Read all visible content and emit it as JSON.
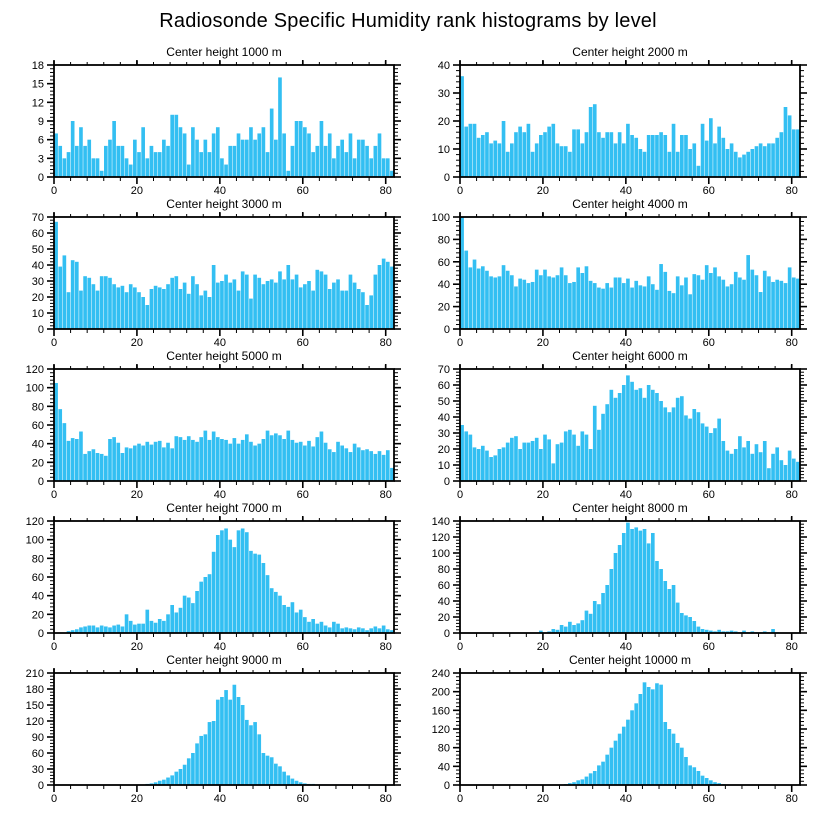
{
  "page": {
    "title": "Radiosonde Specific Humidity rank histograms by level"
  },
  "colors": {
    "bar": "#33bff2",
    "axis": "#000000",
    "background": "#ffffff"
  },
  "chart_data": [
    {
      "type": "bar",
      "title": "Center height 1000 m",
      "xlabel": "",
      "ylabel": "",
      "xlim": [
        0,
        82
      ],
      "ylim": [
        0,
        18
      ],
      "xticks": [
        0,
        20,
        40,
        60,
        80
      ],
      "yticks": [
        0,
        3,
        6,
        9,
        12,
        15,
        18
      ],
      "grid": false,
      "legend": "none",
      "values": [
        7,
        5,
        3,
        4,
        9,
        5,
        8,
        5,
        6,
        3,
        3,
        1,
        5,
        6,
        9,
        5,
        5,
        3,
        2,
        6,
        4,
        8,
        3,
        5,
        4,
        4,
        6,
        5,
        10,
        10,
        8,
        7,
        2,
        8,
        6,
        4,
        6,
        4,
        7,
        8,
        3,
        2,
        5,
        5,
        7,
        6,
        6,
        8,
        6,
        7,
        8,
        4,
        11,
        6,
        16,
        7,
        1,
        5,
        9,
        9,
        8,
        7,
        4,
        5,
        9,
        5,
        7,
        3,
        5,
        6,
        4,
        7,
        3,
        6,
        6,
        5,
        3,
        5,
        7,
        3,
        3,
        1
      ]
    },
    {
      "type": "bar",
      "title": "Center height 2000 m",
      "xlabel": "",
      "ylabel": "",
      "xlim": [
        0,
        82
      ],
      "ylim": [
        0,
        40
      ],
      "xticks": [
        0,
        20,
        40,
        60,
        80
      ],
      "yticks": [
        0,
        10,
        20,
        30,
        40
      ],
      "grid": false,
      "legend": "none",
      "values": [
        36,
        18,
        19,
        19,
        14,
        15,
        16,
        12,
        13,
        12,
        20,
        9,
        12,
        16,
        18,
        16,
        19,
        9,
        12,
        15,
        16,
        18,
        19,
        12,
        11,
        11,
        9,
        17,
        17,
        12,
        16,
        25,
        26,
        16,
        14,
        16,
        16,
        12,
        16,
        12,
        19,
        15,
        14,
        10,
        9,
        15,
        15,
        15,
        16,
        15,
        9,
        19,
        9,
        15,
        15,
        10,
        12,
        4,
        19,
        13,
        21,
        12,
        18,
        14,
        10,
        12,
        9,
        7,
        8,
        9,
        10,
        11,
        12,
        11,
        12,
        12,
        14,
        16,
        25,
        22,
        17,
        17
      ]
    },
    {
      "type": "bar",
      "title": "Center height 3000 m",
      "xlabel": "",
      "ylabel": "",
      "xlim": [
        0,
        82
      ],
      "ylim": [
        0,
        70
      ],
      "xticks": [
        0,
        20,
        40,
        60,
        80
      ],
      "yticks": [
        0,
        10,
        20,
        30,
        40,
        50,
        60,
        70
      ],
      "grid": false,
      "legend": "none",
      "values": [
        67,
        39,
        46,
        23,
        43,
        42,
        24,
        33,
        32,
        28,
        24,
        33,
        33,
        32,
        28,
        26,
        27,
        23,
        28,
        26,
        23,
        20,
        15,
        25,
        27,
        26,
        25,
        28,
        32,
        33,
        25,
        29,
        22,
        33,
        28,
        21,
        24,
        20,
        40,
        29,
        30,
        34,
        29,
        31,
        24,
        36,
        34,
        19,
        34,
        32,
        28,
        30,
        31,
        29,
        36,
        31,
        40,
        31,
        34,
        26,
        28,
        30,
        24,
        37,
        36,
        34,
        25,
        29,
        31,
        24,
        24,
        34,
        29,
        25,
        23,
        15,
        21,
        34,
        40,
        44,
        42,
        39
      ]
    },
    {
      "type": "bar",
      "title": "Center height 4000 m",
      "xlabel": "",
      "ylabel": "",
      "xlim": [
        0,
        82
      ],
      "ylim": [
        0,
        100
      ],
      "xticks": [
        0,
        20,
        40,
        60,
        80
      ],
      "yticks": [
        0,
        20,
        40,
        60,
        80,
        100
      ],
      "grid": false,
      "legend": "none",
      "values": [
        100,
        70,
        55,
        62,
        54,
        56,
        52,
        47,
        46,
        47,
        57,
        52,
        48,
        38,
        45,
        44,
        41,
        42,
        53,
        48,
        53,
        47,
        46,
        48,
        55,
        48,
        41,
        42,
        55,
        50,
        56,
        43,
        41,
        37,
        36,
        41,
        37,
        46,
        46,
        41,
        45,
        37,
        43,
        39,
        38,
        47,
        40,
        35,
        58,
        51,
        34,
        32,
        47,
        39,
        46,
        31,
        49,
        48,
        44,
        57,
        50,
        55,
        47,
        44,
        38,
        40,
        51,
        46,
        44,
        66,
        53,
        48,
        33,
        52,
        47,
        42,
        44,
        43,
        41,
        55,
        46,
        45
      ]
    },
    {
      "type": "bar",
      "title": "Center height 5000 m",
      "xlabel": "",
      "ylabel": "",
      "xlim": [
        0,
        82
      ],
      "ylim": [
        0,
        120
      ],
      "xticks": [
        0,
        20,
        40,
        60,
        80
      ],
      "yticks": [
        0,
        20,
        40,
        60,
        80,
        100,
        120
      ],
      "grid": false,
      "legend": "none",
      "values": [
        105,
        77,
        62,
        43,
        46,
        45,
        53,
        29,
        32,
        34,
        30,
        29,
        27,
        45,
        47,
        41,
        30,
        36,
        35,
        38,
        40,
        38,
        42,
        39,
        42,
        43,
        36,
        41,
        35,
        48,
        47,
        44,
        48,
        44,
        42,
        47,
        54,
        44,
        53,
        47,
        45,
        44,
        40,
        46,
        40,
        44,
        50,
        42,
        38,
        40,
        45,
        54,
        49,
        51,
        49,
        45,
        54,
        44,
        41,
        42,
        38,
        43,
        37,
        47,
        53,
        41,
        34,
        31,
        42,
        38,
        35,
        31,
        40,
        36,
        33,
        34,
        32,
        29,
        32,
        28,
        33,
        14
      ]
    },
    {
      "type": "bar",
      "title": "Center height 6000 m",
      "xlabel": "",
      "ylabel": "",
      "xlim": [
        0,
        82
      ],
      "ylim": [
        0,
        70
      ],
      "xticks": [
        0,
        20,
        40,
        60,
        80
      ],
      "yticks": [
        0,
        10,
        20,
        30,
        40,
        50,
        60,
        70
      ],
      "grid": false,
      "legend": "none",
      "values": [
        35,
        31,
        29,
        21,
        20,
        22,
        19,
        15,
        16,
        20,
        21,
        24,
        27,
        28,
        20,
        24,
        24,
        25,
        27,
        20,
        29,
        26,
        11,
        23,
        24,
        31,
        32,
        29,
        22,
        31,
        29,
        20,
        47,
        32,
        42,
        48,
        57,
        52,
        55,
        60,
        66,
        62,
        57,
        58,
        52,
        60,
        57,
        55,
        50,
        46,
        43,
        46,
        52,
        53,
        41,
        39,
        45,
        43,
        36,
        34,
        30,
        33,
        39,
        25,
        19,
        17,
        20,
        28,
        21,
        25,
        17,
        23,
        18,
        25,
        8,
        17,
        21,
        13,
        10,
        19,
        14,
        12
      ]
    },
    {
      "type": "bar",
      "title": "Center height 7000 m",
      "xlabel": "",
      "ylabel": "",
      "xlim": [
        0,
        82
      ],
      "ylim": [
        0,
        120
      ],
      "xticks": [
        0,
        20,
        40,
        60,
        80
      ],
      "yticks": [
        0,
        20,
        40,
        60,
        80,
        100,
        120
      ],
      "grid": false,
      "legend": "none",
      "values": [
        0,
        0,
        0,
        2,
        3,
        4,
        6,
        7,
        8,
        8,
        6,
        8,
        7,
        6,
        8,
        9,
        7,
        20,
        13,
        9,
        10,
        10,
        25,
        13,
        11,
        15,
        13,
        20,
        30,
        22,
        27,
        40,
        38,
        32,
        45,
        55,
        60,
        63,
        87,
        105,
        110,
        112,
        100,
        92,
        110,
        112,
        108,
        88,
        85,
        84,
        75,
        62,
        48,
        44,
        40,
        30,
        28,
        33,
        22,
        25,
        17,
        12,
        15,
        10,
        12,
        8,
        6,
        12,
        10,
        5,
        6,
        5,
        4,
        6,
        5,
        3,
        5,
        7,
        5,
        8,
        4,
        3
      ]
    },
    {
      "type": "bar",
      "title": "Center height 8000 m",
      "xlabel": "",
      "ylabel": "",
      "xlim": [
        0,
        82
      ],
      "ylim": [
        0,
        140
      ],
      "xticks": [
        0,
        20,
        40,
        60,
        80
      ],
      "yticks": [
        0,
        20,
        40,
        60,
        80,
        100,
        120,
        140
      ],
      "grid": false,
      "legend": "none",
      "values": [
        0,
        0,
        0,
        0,
        0,
        0,
        0,
        0,
        0,
        0,
        0,
        0,
        0,
        0,
        0,
        0,
        0,
        0,
        0,
        3,
        0,
        2,
        5,
        4,
        10,
        8,
        14,
        10,
        12,
        16,
        28,
        24,
        40,
        36,
        50,
        60,
        80,
        100,
        110,
        125,
        138,
        130,
        132,
        128,
        130,
        112,
        125,
        90,
        80,
        65,
        55,
        60,
        38,
        25,
        22,
        20,
        15,
        8,
        5,
        4,
        3,
        2,
        4,
        2,
        2,
        3,
        2,
        1,
        3,
        1,
        2,
        1,
        1,
        2,
        1,
        5,
        1,
        0,
        0,
        0,
        0,
        0
      ]
    },
    {
      "type": "bar",
      "title": "Center height 9000 m",
      "xlabel": "",
      "ylabel": "",
      "xlim": [
        0,
        82
      ],
      "ylim": [
        0,
        210
      ],
      "xticks": [
        0,
        20,
        40,
        60,
        80
      ],
      "yticks": [
        0,
        30,
        60,
        90,
        120,
        150,
        180,
        210
      ],
      "grid": false,
      "legend": "none",
      "values": [
        0,
        0,
        0,
        0,
        0,
        0,
        0,
        0,
        0,
        0,
        0,
        0,
        0,
        0,
        0,
        0,
        0,
        0,
        0,
        0,
        0,
        0,
        2,
        3,
        5,
        8,
        10,
        14,
        18,
        25,
        30,
        38,
        50,
        60,
        78,
        92,
        95,
        118,
        120,
        160,
        165,
        178,
        160,
        188,
        165,
        150,
        122,
        112,
        118,
        95,
        60,
        55,
        52,
        40,
        35,
        25,
        18,
        12,
        8,
        5,
        3,
        2,
        2,
        1,
        1,
        1,
        0,
        1,
        0,
        1,
        0,
        0,
        1,
        0,
        0,
        0,
        1,
        0,
        0,
        0,
        0,
        0
      ]
    },
    {
      "type": "bar",
      "title": "Center height 10000 m",
      "xlabel": "",
      "ylabel": "",
      "xlim": [
        0,
        82
      ],
      "ylim": [
        0,
        240
      ],
      "xticks": [
        0,
        20,
        40,
        60,
        80
      ],
      "yticks": [
        0,
        40,
        80,
        120,
        160,
        200,
        240
      ],
      "grid": false,
      "legend": "none",
      "values": [
        0,
        0,
        0,
        0,
        0,
        0,
        0,
        0,
        0,
        0,
        0,
        0,
        0,
        0,
        0,
        0,
        0,
        0,
        0,
        0,
        0,
        0,
        0,
        0,
        1,
        2,
        4,
        6,
        10,
        12,
        18,
        25,
        30,
        42,
        50,
        65,
        80,
        95,
        110,
        125,
        140,
        160,
        175,
        195,
        220,
        210,
        205,
        218,
        215,
        135,
        120,
        110,
        90,
        80,
        60,
        42,
        38,
        30,
        20,
        15,
        10,
        6,
        4,
        2,
        1,
        1,
        0,
        1,
        0,
        0,
        1,
        0,
        0,
        1,
        0,
        0,
        0,
        0,
        1,
        0,
        0,
        0
      ]
    }
  ]
}
